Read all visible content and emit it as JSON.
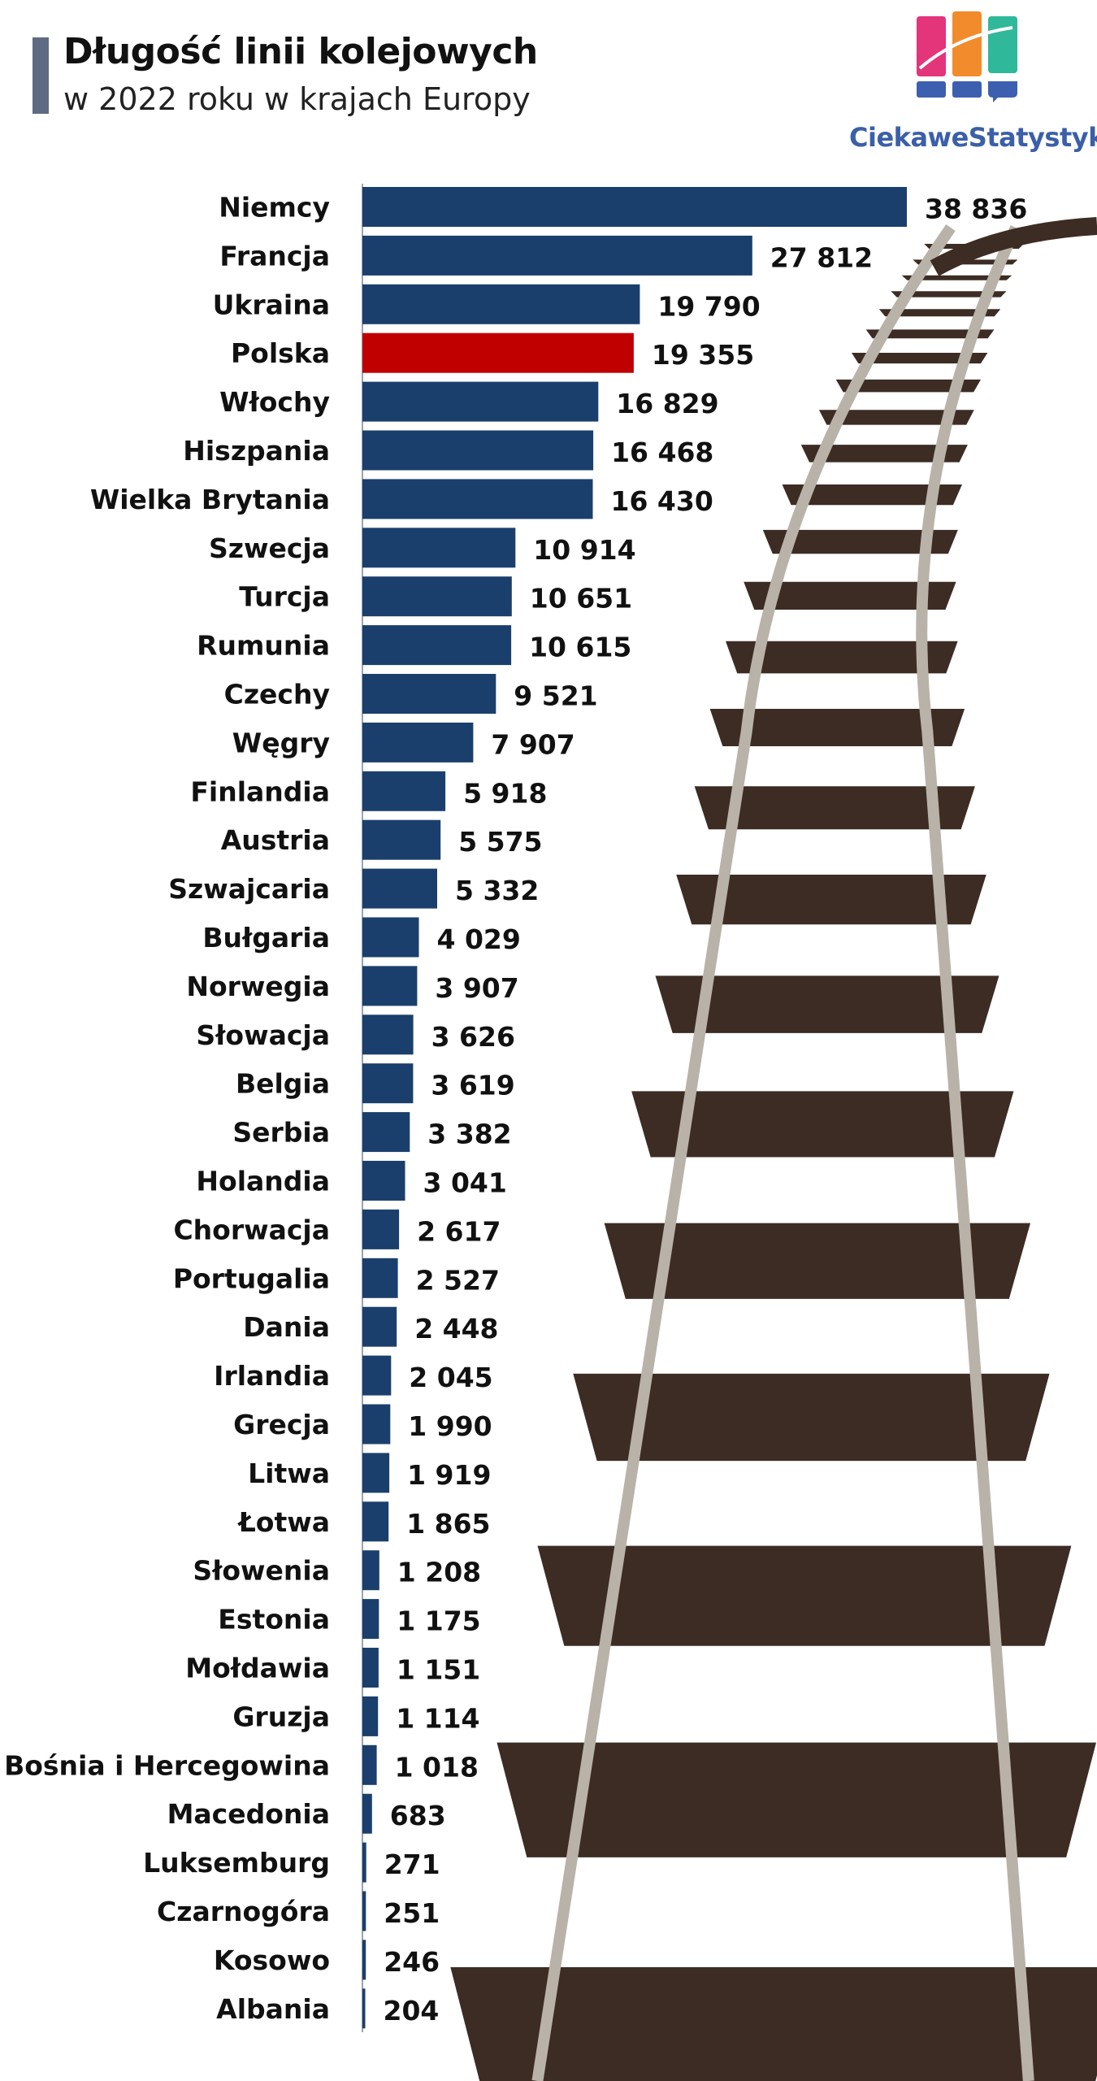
{
  "header": {
    "title": "Długość linii kolejowych",
    "subtitle": "w 2022 roku w krajach Europy",
    "logo_text": "CiekaweStatystyki.pl"
  },
  "colors": {
    "bar": "#1b3f6c",
    "highlight_bar": "#c00000",
    "highlight_text": "#c00000",
    "rail_tie": "#3c2c24",
    "rail_steel": "#b9b2a8"
  },
  "icons": {
    "logo": "bar-chart-logo-icon",
    "background": "railway-track-illustration"
  },
  "chart_data": {
    "type": "bar",
    "orientation": "horizontal",
    "title": "Długość linii kolejowych",
    "subtitle": "w 2022 roku w krajach Europy",
    "xlabel": "",
    "ylabel": "",
    "xlim": [
      0,
      38836
    ],
    "grid": false,
    "highlight": "Polska",
    "categories": [
      "Niemcy",
      "Francja",
      "Ukraina",
      "Polska",
      "Włochy",
      "Hiszpania",
      "Wielka Brytania",
      "Szwecja",
      "Turcja",
      "Rumunia",
      "Czechy",
      "Węgry",
      "Finlandia",
      "Austria",
      "Szwajcaria",
      "Bułgaria",
      "Norwegia",
      "Słowacja",
      "Belgia",
      "Serbia",
      "Holandia",
      "Chorwacja",
      "Portugalia",
      "Dania",
      "Irlandia",
      "Grecja",
      "Litwa",
      "Łotwa",
      "Słowenia",
      "Estonia",
      "Mołdawia",
      "Gruzja",
      "Bośnia i Hercegowina",
      "Macedonia",
      "Luksemburg",
      "Czarnogóra",
      "Kosowo",
      "Albania"
    ],
    "values": [
      38836,
      27812,
      19790,
      19355,
      16829,
      16468,
      16430,
      10914,
      10651,
      10615,
      9521,
      7907,
      5918,
      5575,
      5332,
      4029,
      3907,
      3626,
      3619,
      3382,
      3041,
      2617,
      2527,
      2448,
      2045,
      1990,
      1919,
      1865,
      1208,
      1175,
      1151,
      1114,
      1018,
      683,
      271,
      251,
      246,
      204
    ],
    "value_labels": [
      "38 836",
      "27 812",
      "19 790",
      "19 355",
      "16 829",
      "16 468",
      "16 430",
      "10 914",
      "10 651",
      "10 615",
      "9 521",
      "7 907",
      "5 918",
      "5 575",
      "5 332",
      "4 029",
      "3 907",
      "3 626",
      "3 619",
      "3 382",
      "3 041",
      "2 617",
      "2 527",
      "2 448",
      "2 045",
      "1 990",
      "1 919",
      "1 865",
      "1 208",
      "1 175",
      "1 151",
      "1 114",
      "1 018",
      "683",
      "271",
      "251",
      "246",
      "204"
    ]
  }
}
